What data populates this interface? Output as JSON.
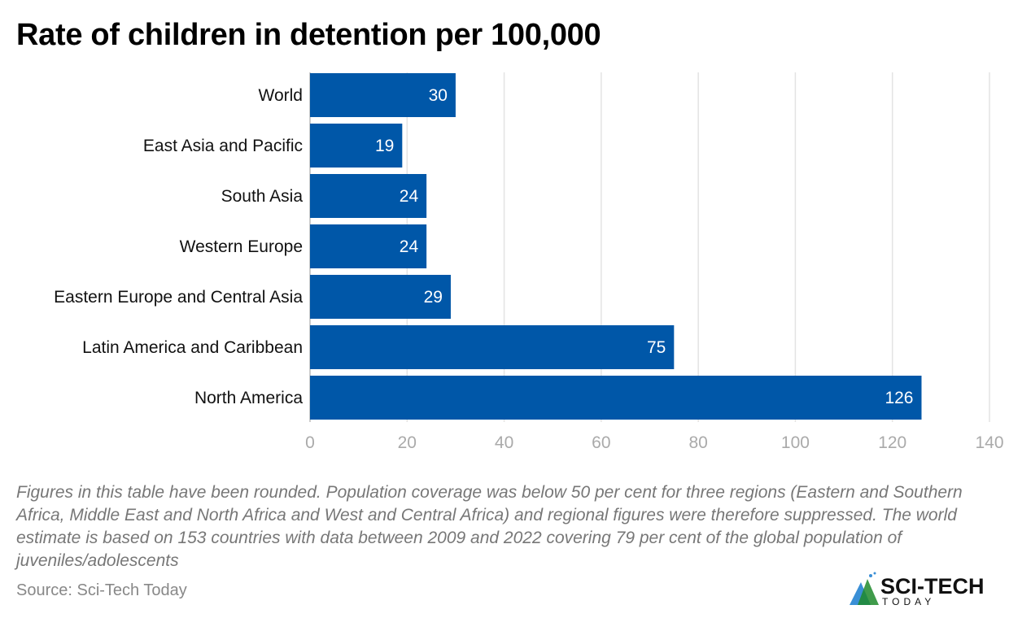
{
  "chart_data": {
    "type": "bar",
    "orientation": "horizontal",
    "title": "Rate of children in detention per 100,000",
    "categories": [
      "World",
      "East Asia and Pacific",
      "South Asia",
      "Western Europe",
      "Eastern Europe and Central Asia",
      "Latin America and Caribbean",
      "North America"
    ],
    "values": [
      30,
      19,
      24,
      24,
      29,
      75,
      126
    ],
    "data_labels": [
      "30",
      "19",
      "24",
      "24",
      "29",
      "75",
      "126"
    ],
    "xlim": [
      0,
      140
    ],
    "xticks": [
      "0",
      "20",
      "40",
      "60",
      "80",
      "100",
      "120",
      "140"
    ],
    "grid": true,
    "bar_color": "#0057A8"
  },
  "note": "Figures in this table have been rounded. Population coverage was below 50 per cent for three regions (Eastern and Southern Africa, Middle East and North Africa and West and Central Africa) and regional figures were therefore suppressed. The world estimate is based on 153 countries with data between 2009 and 2022 covering 79 per cent of the global population of juveniles/adolescents",
  "source": "Source: Sci-Tech Today",
  "logo": {
    "text": "SCI-TECH",
    "subtext": "TODAY"
  }
}
